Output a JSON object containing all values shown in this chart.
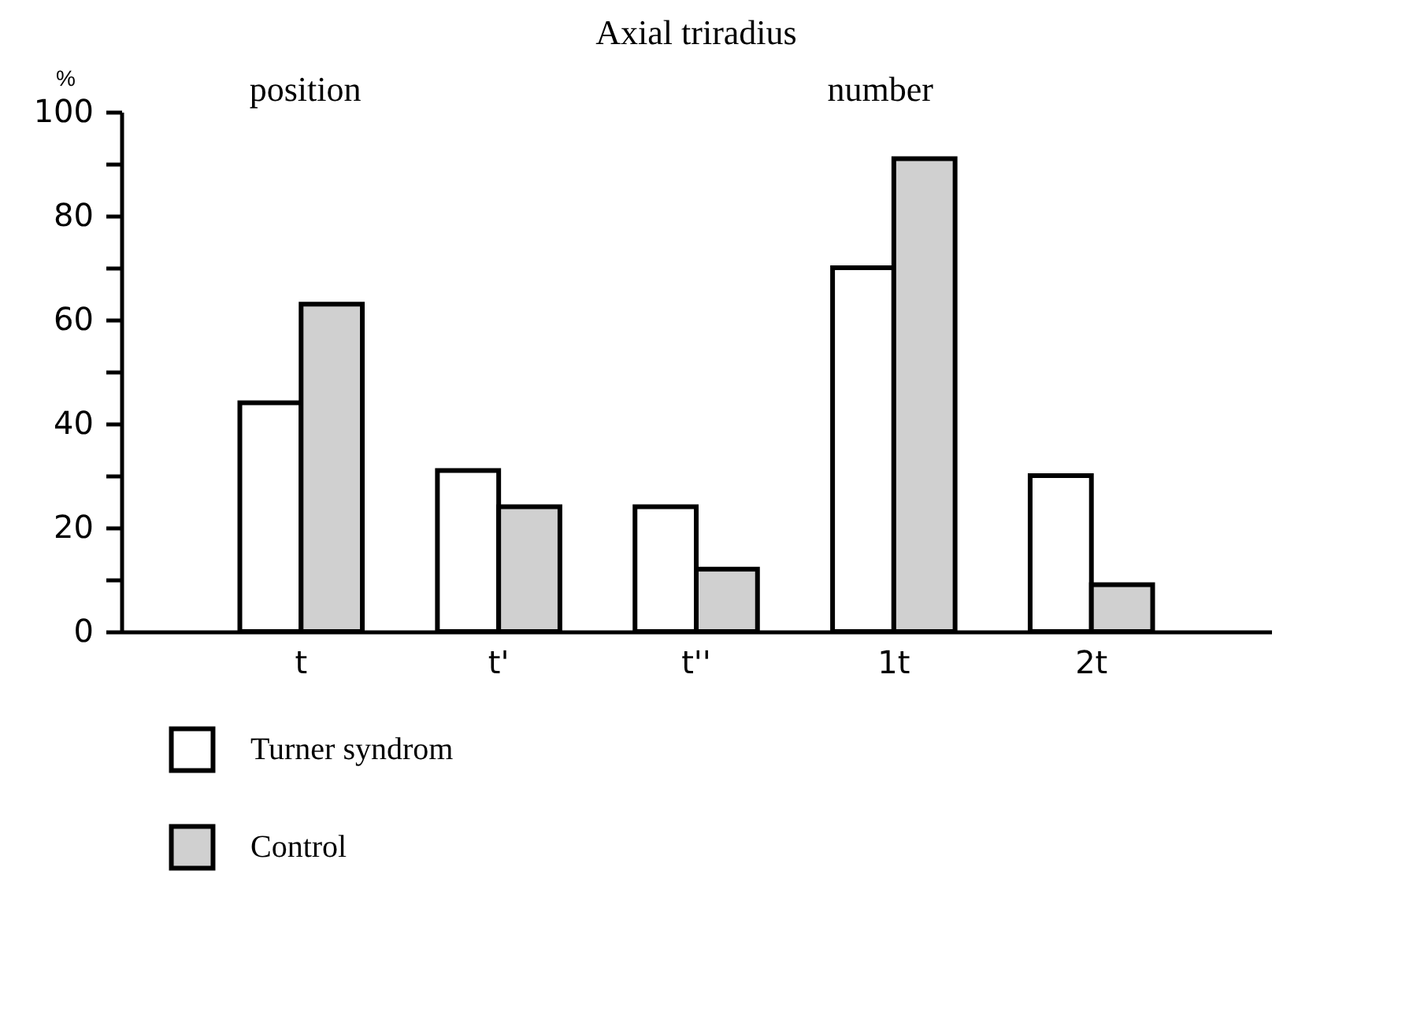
{
  "chart_data": {
    "type": "bar",
    "title": "Axial triradius",
    "ylabel": "%",
    "categories": [
      "t",
      "t'",
      "t''",
      "1t",
      "2t"
    ],
    "series": [
      {
        "name": "Turner syndrom",
        "color": "#ffffff",
        "values": [
          44,
          31,
          24,
          70,
          30
        ]
      },
      {
        "name": "Control",
        "color": "#d0d0d0",
        "values": [
          63,
          24,
          12,
          91,
          9
        ]
      }
    ],
    "ylim": [
      0,
      100
    ],
    "yticks": [
      0,
      {
        "value": 10,
        "label": null
      },
      20,
      {
        "value": 30,
        "label": null
      },
      40,
      {
        "value": 50,
        "label": null
      },
      60,
      {
        "value": 70,
        "label": null
      },
      80,
      {
        "value": 90,
        "label": null
      },
      100
    ],
    "annotations": [
      "position",
      "number"
    ],
    "grid": false,
    "legend": "bottom left"
  }
}
